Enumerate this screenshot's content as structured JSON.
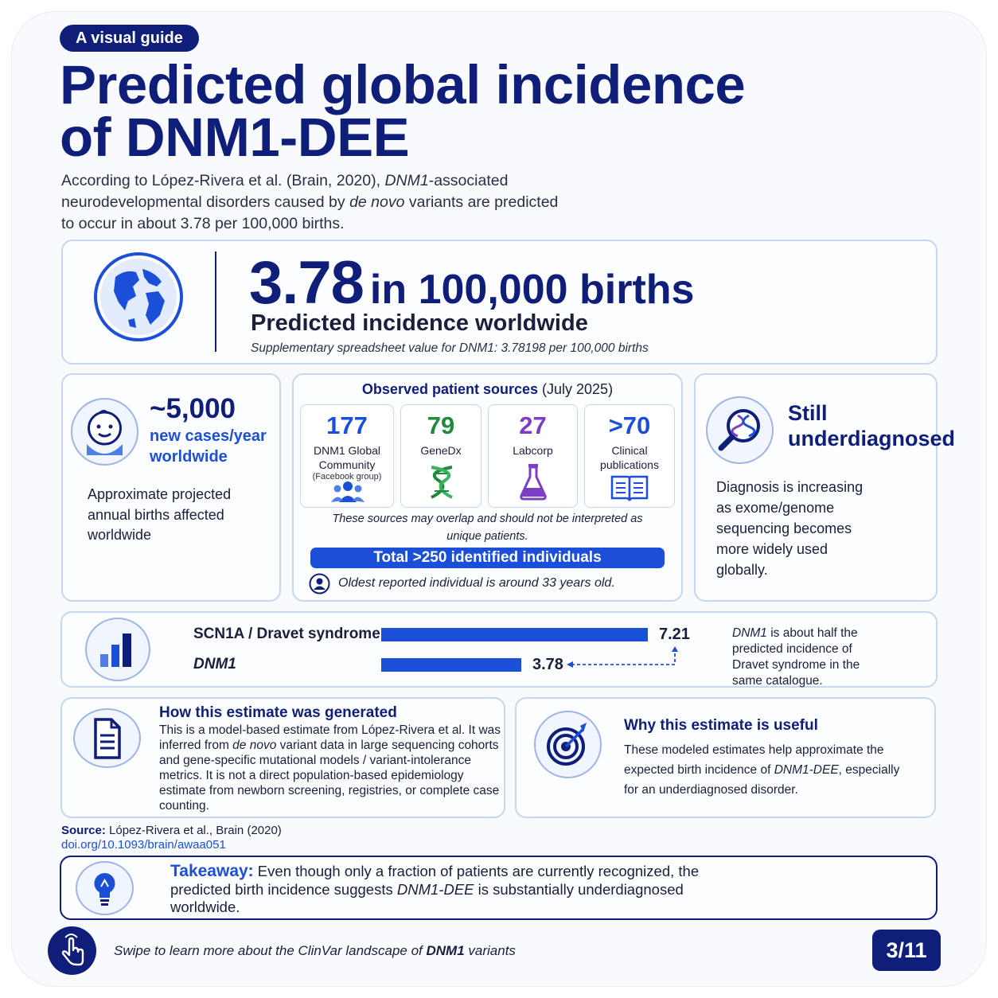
{
  "tag": "A visual guide",
  "title_line1": "Predicted global incidence",
  "title_line2": "of DNM1-DEE",
  "intro": {
    "p1": "According to López-Rivera et al. (Brain, 2020), ",
    "p1_em": "DNM1",
    "p2": "-associated neurodevelopmental disorders caused by ",
    "p2_em": "de novo",
    "p3": " variants are predicted to occur in about 3.78 per 100,000 births."
  },
  "headline": {
    "number": "3.78",
    "rest": "in 100,000 births",
    "subtitle": "Predicted incidence worldwide",
    "note": "Supplementary spreadsheet value for DNM1: 3.78198 per 100,000 births",
    "icon": "globe-icon"
  },
  "cases": {
    "value": "~5,000",
    "label1": "new cases/year",
    "label2": "worldwide",
    "desc": "Approximate projected annual births affected worldwide",
    "icon": "baby-icon"
  },
  "sources": {
    "title": "Observed patient sources",
    "date": " (July 2025)",
    "items": [
      {
        "num": "177",
        "label": "DNM1 Global Community",
        "sub": "(Facebook group)",
        "color": "#1c4fd8",
        "icon": "people-icon"
      },
      {
        "num": "79",
        "label": "GeneDx",
        "sub": "",
        "color": "#1f8a3b",
        "icon": "dna-icon"
      },
      {
        "num": "27",
        "label": "Labcorp",
        "sub": "",
        "color": "#7c3fc4",
        "icon": "flask-icon"
      },
      {
        "num": ">70",
        "label": "Clinical publications",
        "sub": "",
        "color": "#1c4fd8",
        "icon": "book-icon"
      }
    ],
    "overlap": "These sources may overlap and should not be interpreted as unique patients.",
    "total": "Total >250 identified individuals",
    "oldest": "Oldest reported individual is around 33 years old."
  },
  "underdiagnosed": {
    "title1": "Still",
    "title2": "underdiagnosed",
    "desc": "Diagnosis is increasing as exome/genome sequencing becomes more widely used globally.",
    "icon": "magnifier-dna-icon"
  },
  "chart_data": {
    "type": "bar",
    "orientation": "horizontal",
    "categories": [
      "SCN1A / Dravet syndrome",
      "DNM1"
    ],
    "values": [
      7.21,
      3.78
    ],
    "value_labels": [
      "7.21",
      "3.78"
    ],
    "xlim": [
      0,
      7.21
    ],
    "note_em": "DNM1",
    "note": " is about half the predicted incidence of Dravet syndrome in the same catalogue."
  },
  "how": {
    "title": "How this estimate was generated",
    "t1": "This is a model-based estimate from López-Rivera et al. It was inferred from ",
    "t1_em": "de novo",
    "t2": " variant data in large sequencing cohorts and gene-specific mutational models / variant-intolerance metrics. It is not a direct population-based epidemiology estimate from newborn screening, registries, or complete case counting.",
    "icon": "document-icon"
  },
  "why": {
    "title": "Why this estimate is useful",
    "t1": "These modeled estimates help approximate the expected birth incidence of ",
    "t1_em": "DNM1-DEE",
    "t2": ", especially for an underdiagnosed disorder.",
    "icon": "target-icon"
  },
  "source": {
    "label": "Source:",
    "text": " López-Rivera et al., Brain (2020)",
    "doi": "doi.org/10.1093/brain/awaa051"
  },
  "takeaway": {
    "label": "Takeaway:",
    "t1": " Even though only a fraction of patients are currently recognized, the predicted birth incidence suggests ",
    "t1_em": "DNM1-DEE",
    "t2": " is substantially underdiagnosed worldwide.",
    "icon": "lightbulb-icon"
  },
  "footer": {
    "t1": "Swipe to learn more about the ClinVar landscape of ",
    "t1_em": "DNM1",
    "t2": " variants",
    "page": "3/11",
    "icon": "swipe-hand-icon"
  }
}
